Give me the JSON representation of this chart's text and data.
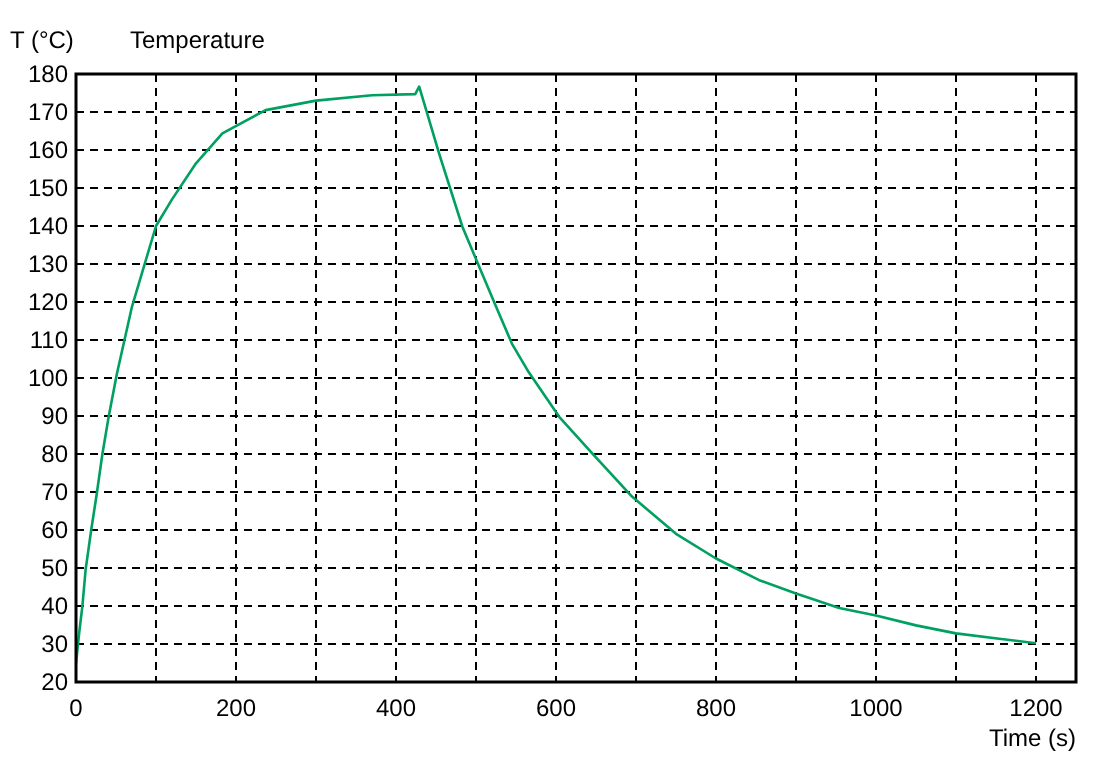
{
  "chart_data": {
    "type": "line",
    "title": "Temperature",
    "xlabel": "Time (s)",
    "ylabel": "T (°C)",
    "xlim": [
      0,
      1250
    ],
    "ylim": [
      20,
      180
    ],
    "xticks": [
      0,
      {
        "value": 100,
        "label": null
      },
      200,
      {
        "value": 300,
        "label": null
      },
      400,
      {
        "value": 500,
        "label": null
      },
      600,
      {
        "value": 700,
        "label": null
      },
      800,
      {
        "value": 900,
        "label": null
      },
      1000,
      {
        "value": 1100,
        "label": null
      },
      1200
    ],
    "yticks": [
      20,
      30,
      40,
      50,
      60,
      70,
      80,
      90,
      100,
      110,
      120,
      130,
      140,
      150,
      160,
      170,
      180
    ],
    "grid": true,
    "marker": "none",
    "line_style": "solid",
    "series": [
      {
        "color": "#00a060",
        "x": [
          0,
          4,
          8,
          12,
          19,
          26,
          33,
          41,
          51,
          70,
          100,
          120,
          150,
          183,
          237,
          300,
          370,
          424,
          429,
          454,
          483,
          504,
          525,
          545,
          566,
          604,
          645,
          695,
          750,
          800,
          854,
          900,
          954,
          1000,
          1050,
          1100,
          1154,
          1200
        ],
        "values": [
          25,
          33,
          40,
          49.5,
          60,
          69.6,
          80,
          90,
          101,
          118.8,
          140,
          147,
          156.5,
          164.4,
          170.5,
          173,
          174.4,
          174.7,
          176.7,
          159,
          139.8,
          129.3,
          118.8,
          109,
          101.5,
          89.8,
          80.2,
          68.8,
          59,
          52.5,
          46.8,
          43.3,
          39.5,
          37.5,
          34.9,
          32.8,
          31.4,
          30.2
        ]
      }
    ]
  }
}
